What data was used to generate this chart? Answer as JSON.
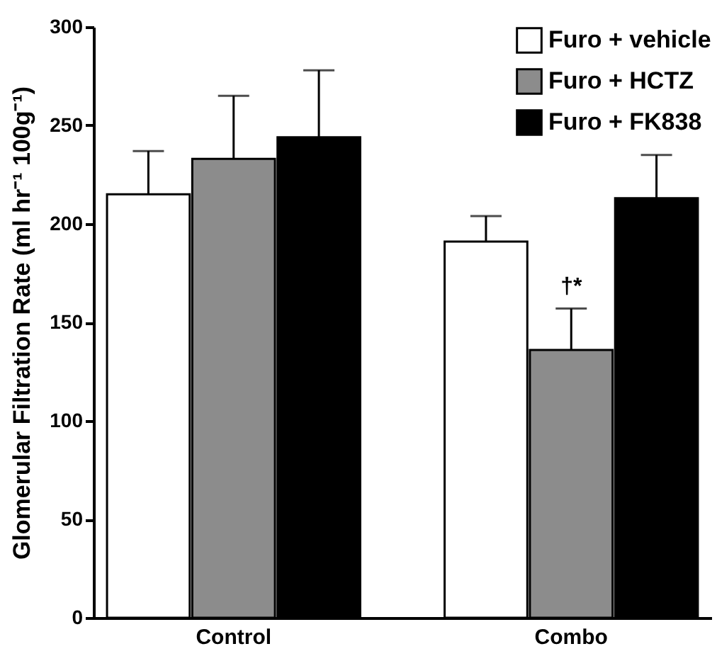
{
  "chart_data": {
    "type": "bar",
    "ylabel": "Glomerular Filtration Rate (ml hr⁻¹ 100g⁻¹)",
    "categories": [
      "Control",
      "Combo"
    ],
    "series": [
      {
        "name": "Furo + vehicle",
        "color": "#ffffff",
        "values": [
          215,
          191
        ],
        "errors": [
          [
            215,
            237
          ],
          [
            191,
            204
          ]
        ]
      },
      {
        "name": "Furo + HCTZ",
        "color": "#8c8c8c",
        "values": [
          233,
          136
        ],
        "errors": [
          [
            233,
            265
          ],
          [
            136,
            157
          ]
        ]
      },
      {
        "name": "Furo + FK838",
        "color": "#000000",
        "values": [
          244,
          213
        ],
        "errors": [
          [
            244,
            278
          ],
          [
            213,
            235
          ]
        ]
      }
    ],
    "ylim": [
      0,
      300
    ],
    "yticks": [
      0,
      50,
      100,
      150,
      200,
      250,
      300
    ],
    "annotations": [
      {
        "text": "†*",
        "x": "Combo",
        "y": 157
      }
    ],
    "legend": "top right",
    "grid": false
  }
}
